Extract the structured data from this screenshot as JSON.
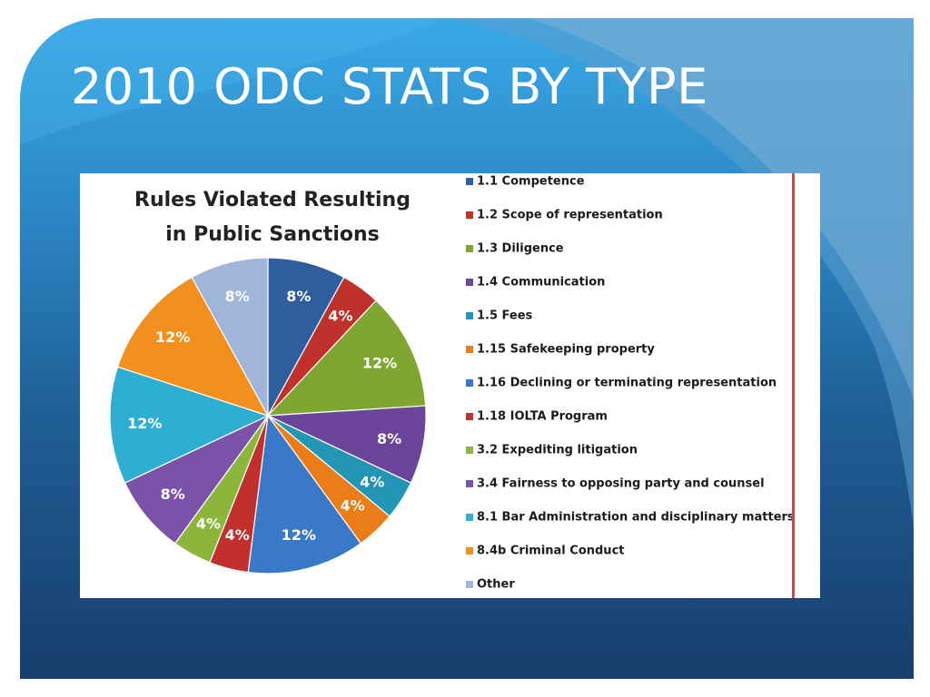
{
  "slide": {
    "title": "2010 ODC STATS BY TYPE"
  },
  "chart_data": {
    "type": "pie",
    "title": [
      "Rules Violated Resulting",
      "in Public Sanctions"
    ],
    "start_angle_deg": 0,
    "direction": "clockwise",
    "legend_position": "right",
    "slices": [
      {
        "name": "1.1 Competence",
        "value": 8,
        "label": "8%",
        "color": "#2f5e9e"
      },
      {
        "name": "1.2 Scope of representation",
        "value": 4,
        "label": "4%",
        "color": "#c0312c"
      },
      {
        "name": "1.3 Diligence",
        "value": 12,
        "label": "12%",
        "color": "#7ea631"
      },
      {
        "name": "1.4 Communication",
        "value": 8,
        "label": "8%",
        "color": "#6a459a"
      },
      {
        "name": "1.5 Fees",
        "value": 4,
        "label": "4%",
        "color": "#2496b5"
      },
      {
        "name": "1.15 Safekeeping property",
        "value": 4,
        "label": "4%",
        "color": "#ea7d18"
      },
      {
        "name": "1.16 Declining or terminating representation",
        "value": 12,
        "label": "12%",
        "color": "#3a78c8"
      },
      {
        "name": "1.18 IOLTA Program",
        "value": 4,
        "label": "4%",
        "color": "#c2302d"
      },
      {
        "name": "3.2 Expediting litigation",
        "value": 4,
        "label": "4%",
        "color": "#8cb53c"
      },
      {
        "name": "3.4 Fairness to opposing party and counsel",
        "value": 8,
        "label": "8%",
        "color": "#7a52a8"
      },
      {
        "name": "8.1 Bar Administration and disciplinary matters",
        "value": 12,
        "label": "12%",
        "color": "#2eaed2"
      },
      {
        "name": "8.4b Criminal Conduct",
        "value": 12,
        "label": "12%",
        "color": "#f2901f"
      },
      {
        "name": "Other",
        "value": 8,
        "label": "8%",
        "color": "#9fb6da"
      }
    ]
  },
  "legend_order": [
    0,
    1,
    2,
    3,
    4,
    5,
    6,
    7,
    8,
    9,
    10,
    11,
    12
  ]
}
